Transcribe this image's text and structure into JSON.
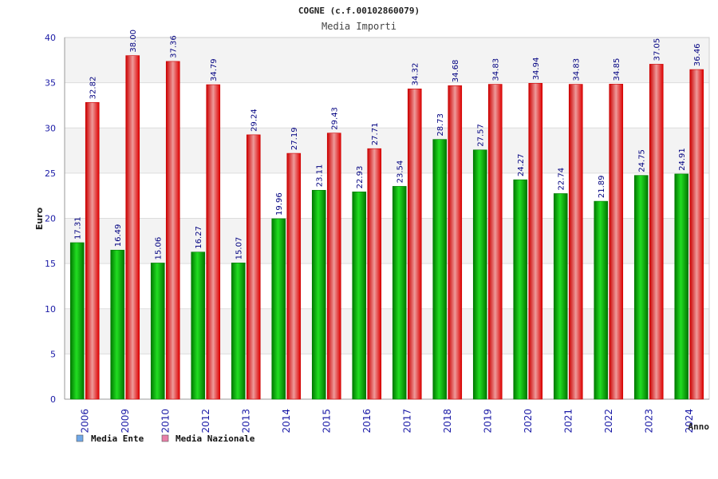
{
  "chart_data": {
    "type": "bar",
    "title": "COGNE (c.f.00102860079)",
    "subtitle": "Media Importi",
    "xlabel": "Anno",
    "ylabel": "Euro",
    "ylim": [
      0,
      40
    ],
    "yticks": [
      0,
      5,
      10,
      15,
      20,
      25,
      30,
      35,
      40
    ],
    "grid": true,
    "legend_position": "bottom-left",
    "categories": [
      "2006",
      "2009",
      "2010",
      "2012",
      "2013",
      "2014",
      "2015",
      "2016",
      "2017",
      "2018",
      "2019",
      "2020",
      "2021",
      "2022",
      "2023",
      "2024"
    ],
    "series": [
      {
        "name": "Media Ente",
        "legend_color": "#6fa8e8",
        "bar_color": "#00bb00",
        "values": [
          17.31,
          16.49,
          15.06,
          16.27,
          15.07,
          19.96,
          23.11,
          22.93,
          23.54,
          28.73,
          27.57,
          24.27,
          22.74,
          21.89,
          24.75,
          24.91
        ],
        "labels": [
          "17.31",
          "16.49",
          "15.06",
          "16.27",
          "15.07",
          "19.96",
          "23.11",
          "22.93",
          "23.54",
          "28.73",
          "27.57",
          "24.27",
          "22.74",
          "21.89",
          "24.75",
          "24.91"
        ]
      },
      {
        "name": "Media Nazionale",
        "legend_color": "#e87fa8",
        "bar_color": "#ee1111",
        "values": [
          32.82,
          38.0,
          37.36,
          34.79,
          29.24,
          27.19,
          29.43,
          27.71,
          34.32,
          34.68,
          34.83,
          34.94,
          34.83,
          34.85,
          37.05,
          36.46
        ],
        "labels": [
          "32.82",
          "38.00",
          "37.36",
          "34.79",
          "29.24",
          "27.19",
          "29.43",
          "27.71",
          "34.32",
          "34.68",
          "34.83",
          "34.94",
          "34.83",
          "34.85",
          "37.05",
          "36.46"
        ]
      }
    ]
  },
  "colors": {
    "axis_text": "#1a1aa6",
    "label_text": "#000080",
    "band_light": "#f3f3f3",
    "band_white": "#ffffff",
    "grid": "#dddddd",
    "axis": "#999999"
  }
}
